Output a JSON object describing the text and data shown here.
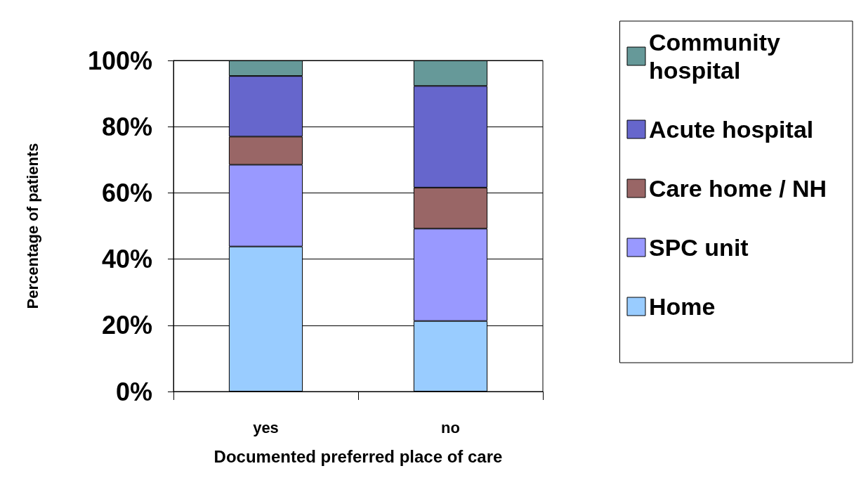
{
  "chart_data": {
    "type": "bar",
    "stacked": true,
    "xlabel": "Documented preferred place of care",
    "ylabel": "Percentage of patients",
    "categories": [
      "yes",
      "no"
    ],
    "series": [
      {
        "name": "Home",
        "color": "#99ccff",
        "values": [
          43.8,
          21.3
        ]
      },
      {
        "name": "SPC unit",
        "color": "#9999ff",
        "values": [
          24.7,
          27.9
        ]
      },
      {
        "name": "Care home / NH",
        "color": "#996666",
        "values": [
          8.5,
          12.4
        ]
      },
      {
        "name": "Acute hospital",
        "color": "#6666cc",
        "values": [
          18.3,
          30.7
        ]
      },
      {
        "name": "Community hospital",
        "color": "#669999",
        "values": [
          4.7,
          7.7
        ]
      }
    ],
    "ylim": [
      0,
      100
    ],
    "yticks": [
      {
        "value": 0,
        "label": "0%"
      },
      {
        "value": 20,
        "label": "20%"
      },
      {
        "value": 40,
        "label": "40%"
      },
      {
        "value": 60,
        "label": "60%"
      },
      {
        "value": 80,
        "label": "80%"
      },
      {
        "value": 100,
        "label": "100%"
      }
    ],
    "grid": "y",
    "legend": "right"
  }
}
